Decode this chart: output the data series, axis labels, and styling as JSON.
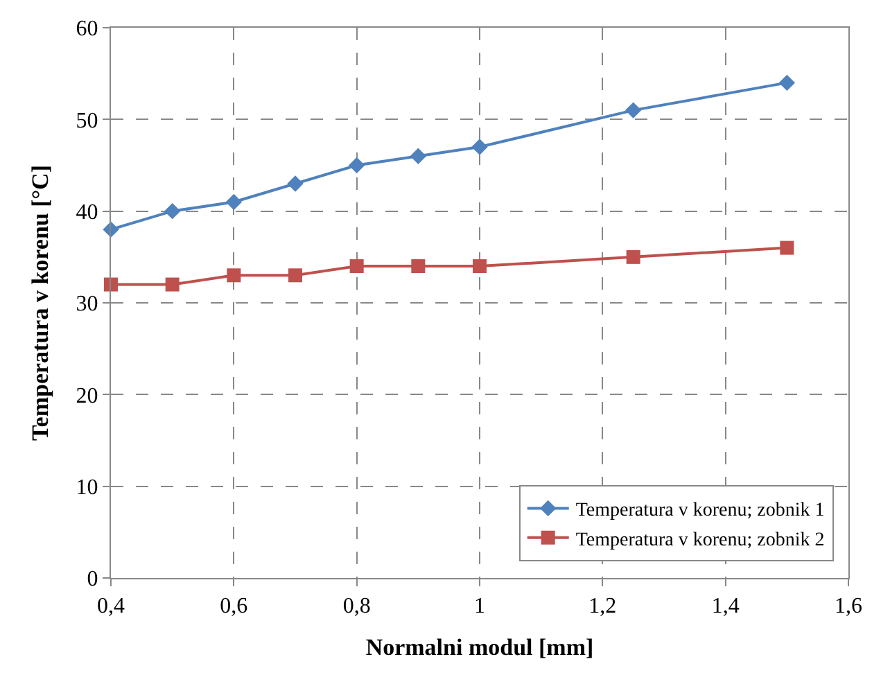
{
  "chart_data": {
    "type": "line",
    "xlabel": "Normalni modul [mm]",
    "ylabel": "Temperatura v korenu [°C]",
    "x": [
      0.4,
      0.5,
      0.6,
      0.7,
      0.8,
      0.9,
      1.0,
      1.25,
      1.5
    ],
    "series": [
      {
        "name": "Temperatura v korenu; zobnik 1",
        "color": "#4f81bd",
        "marker": "diamond",
        "values": [
          38,
          40,
          41,
          43,
          45,
          46,
          47,
          51,
          54
        ]
      },
      {
        "name": "Temperatura v korenu; zobnik 2",
        "color": "#c0504d",
        "marker": "square",
        "values": [
          32,
          32,
          33,
          33,
          34,
          34,
          34,
          35,
          36
        ]
      }
    ],
    "xlim": [
      0.4,
      1.6
    ],
    "xticks": [
      {
        "value": 0.4,
        "label": "0,4"
      },
      {
        "value": 0.6,
        "label": "0,6"
      },
      {
        "value": 0.8,
        "label": "0,8"
      },
      {
        "value": 1.0,
        "label": "1"
      },
      {
        "value": 1.2,
        "label": "1,2"
      },
      {
        "value": 1.4,
        "label": "1,4"
      },
      {
        "value": 1.6,
        "label": "1,6"
      }
    ],
    "ylim": [
      0,
      60
    ],
    "yticks": [
      0,
      10,
      20,
      30,
      40,
      50,
      60
    ],
    "grid": true,
    "legend": "bottom right",
    "line_style": "solid"
  }
}
